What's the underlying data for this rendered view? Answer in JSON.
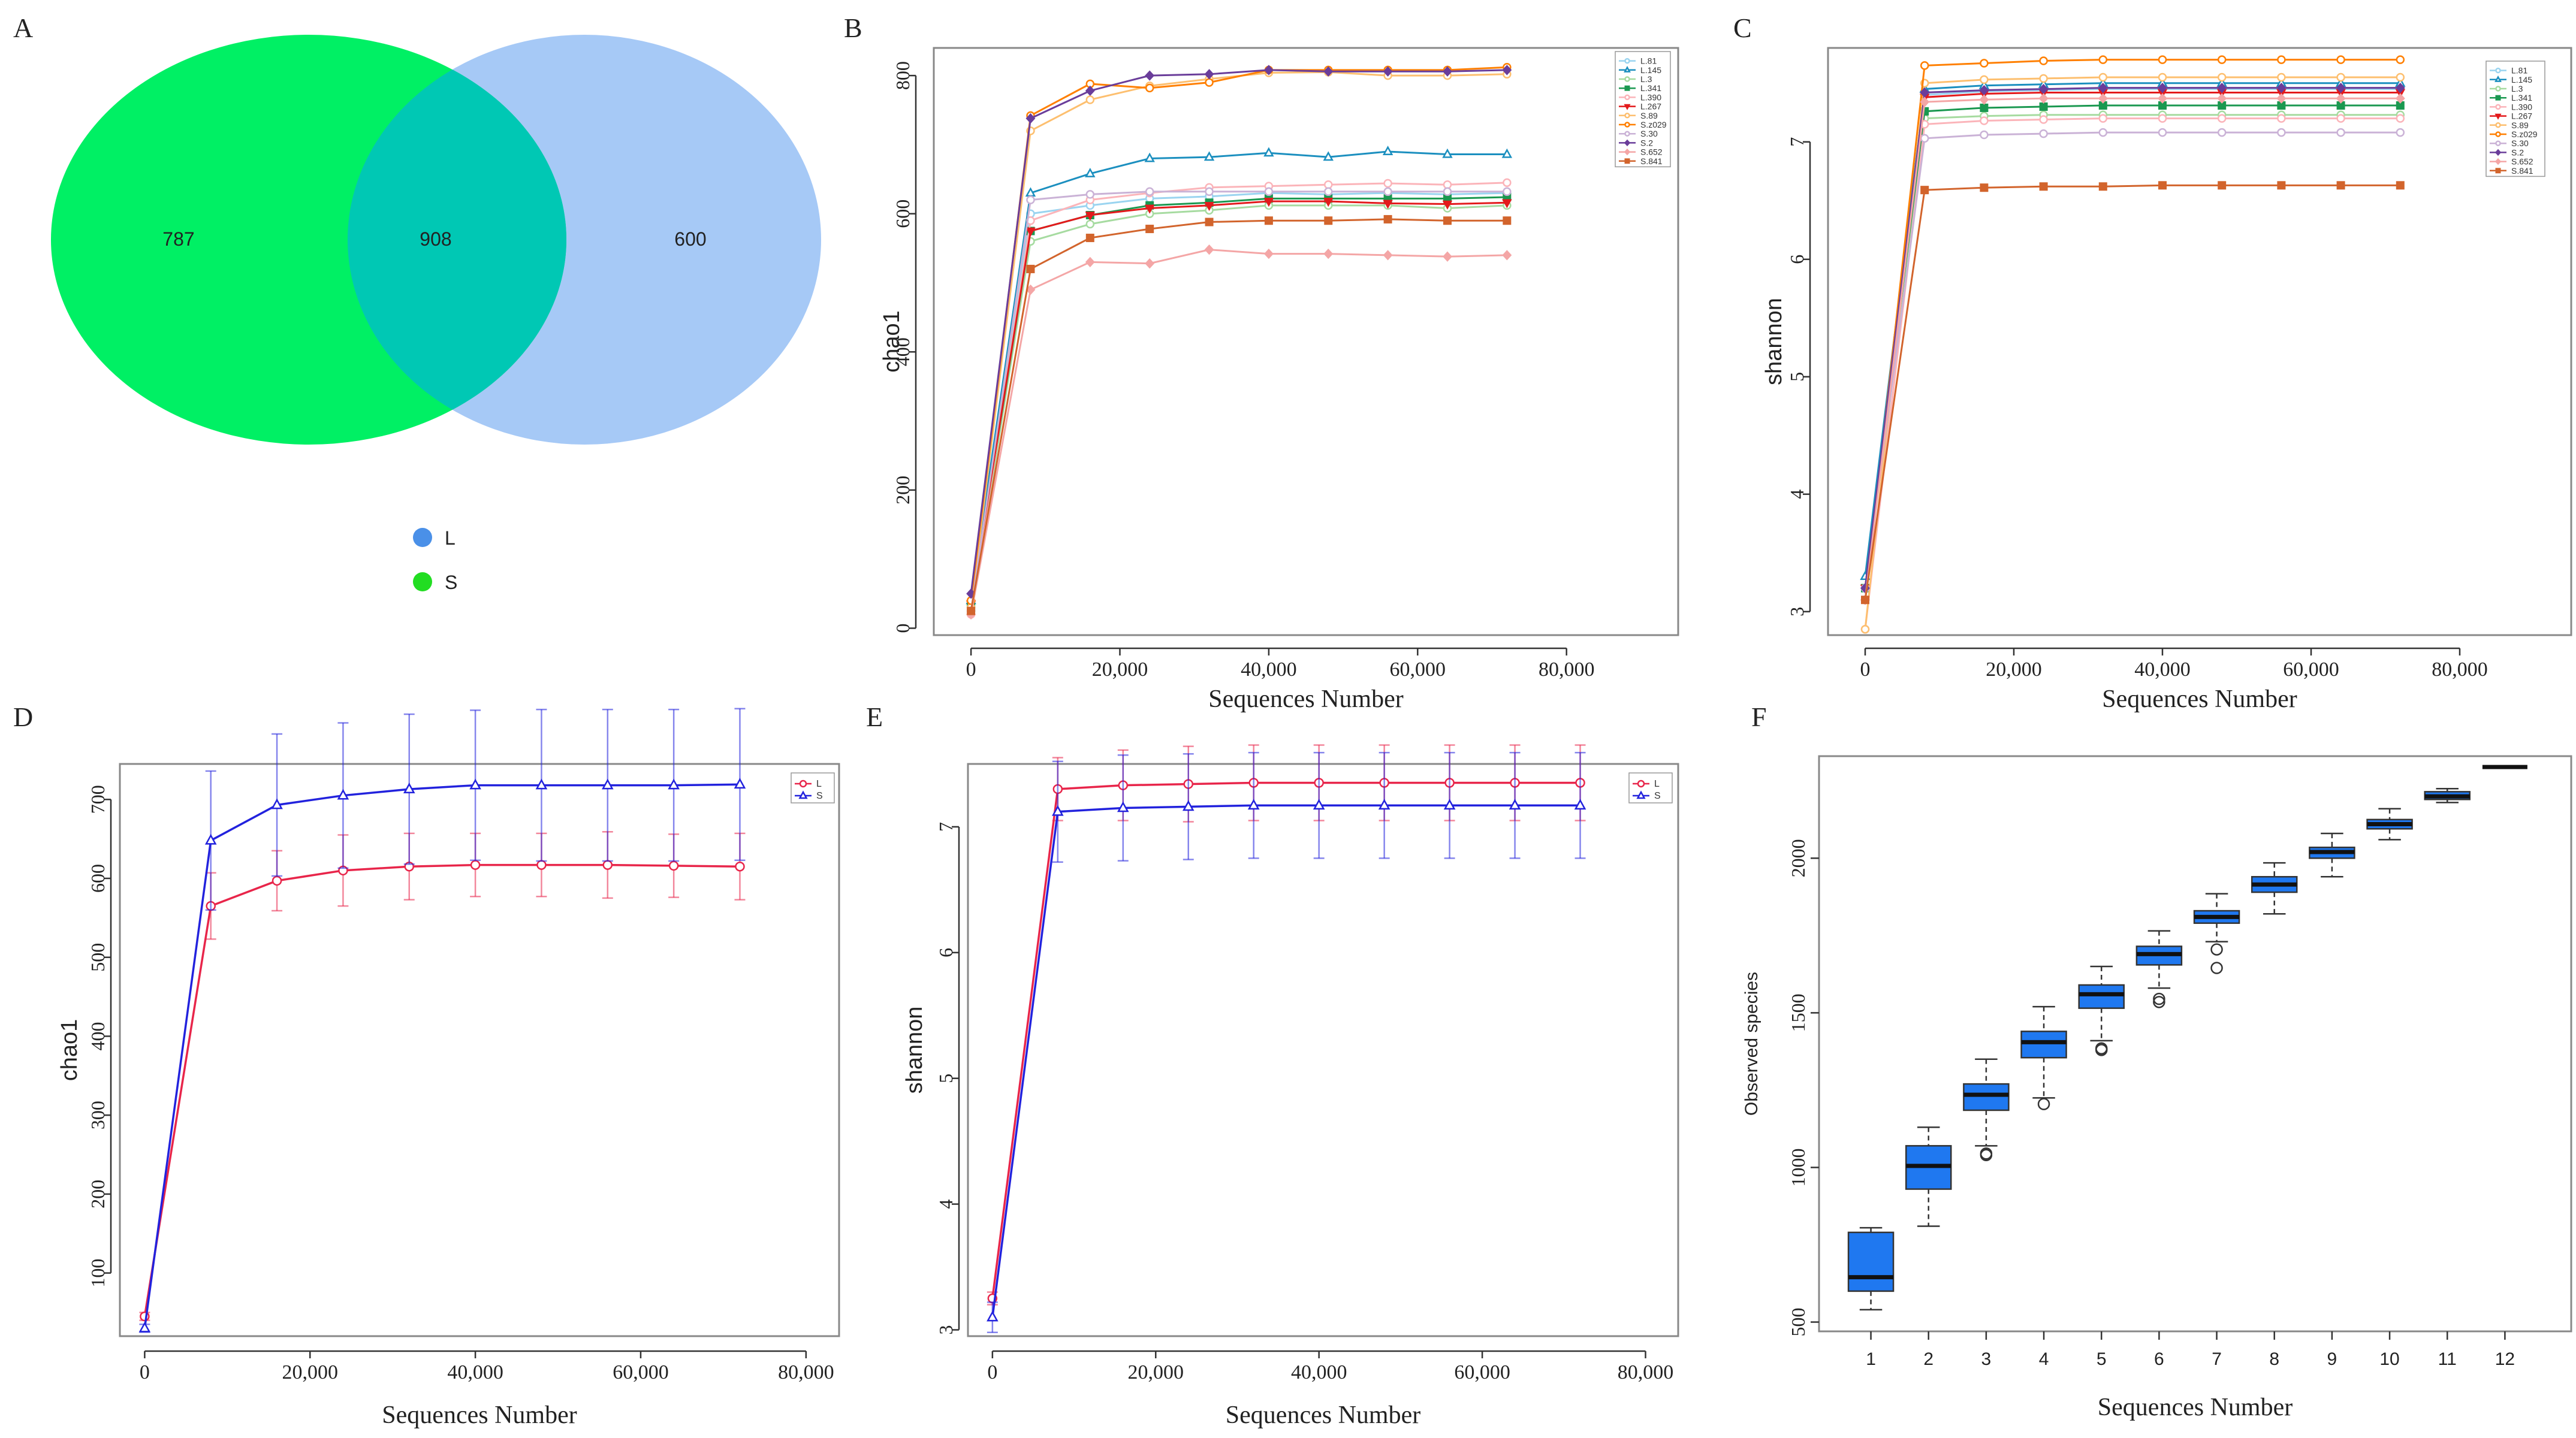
{
  "panels": {
    "A": "A",
    "B": "B",
    "C": "C",
    "D": "D",
    "E": "E",
    "F": "F"
  },
  "chart_data": [
    {
      "id": "A",
      "type": "venn",
      "sets": [
        {
          "name": "S",
          "only": 787,
          "color": "#00f060"
        },
        {
          "name": "L",
          "only": 600,
          "color": "#a0c8f8"
        }
      ],
      "overlap": 908,
      "overlap_color": "#00c8b4",
      "legend": [
        {
          "label": "L",
          "color": "#4a90e8"
        },
        {
          "label": "S",
          "color": "#22dd22"
        }
      ]
    },
    {
      "id": "B",
      "type": "line",
      "xlabel": "Sequences Number",
      "ylabel": "chao1",
      "xlim": [
        -5000,
        95000
      ],
      "ylim": [
        -10,
        840
      ],
      "xticks": [
        0,
        20000,
        40000,
        60000,
        80000
      ],
      "xtick_labels": [
        "0",
        "20,000",
        "40,000",
        "60,000",
        "80,000"
      ],
      "yticks": [
        0,
        200,
        400,
        600,
        800
      ],
      "ytick_labels": [
        "0",
        "200",
        "400",
        "600",
        "800"
      ],
      "x": [
        0,
        8000,
        16000,
        24000,
        32000,
        40000,
        48000,
        56000,
        64000,
        72000
      ],
      "series": [
        {
          "name": "L.81",
          "color": "#9ad4f0",
          "marker": "circle",
          "values": [
            30,
            600,
            612,
            622,
            625,
            630,
            628,
            630,
            628,
            630
          ]
        },
        {
          "name": "L.145",
          "color": "#1b8fbf",
          "marker": "triangle",
          "values": [
            40,
            630,
            658,
            680,
            682,
            688,
            682,
            690,
            686,
            686
          ]
        },
        {
          "name": "L.3",
          "color": "#a6dba0",
          "marker": "circle",
          "values": [
            25,
            560,
            585,
            600,
            605,
            612,
            612,
            612,
            608,
            612
          ]
        },
        {
          "name": "L.341",
          "color": "#1a9850",
          "marker": "square",
          "values": [
            30,
            575,
            598,
            612,
            616,
            622,
            622,
            622,
            622,
            624
          ]
        },
        {
          "name": "L.390",
          "color": "#fbb4b9",
          "marker": "circle",
          "values": [
            20,
            590,
            620,
            630,
            638,
            640,
            642,
            644,
            642,
            645
          ]
        },
        {
          "name": "L.267",
          "color": "#e31a1c",
          "marker": "triangle-down",
          "values": [
            35,
            575,
            598,
            608,
            612,
            618,
            618,
            615,
            614,
            616
          ]
        },
        {
          "name": "S.89",
          "color": "#fdbf6f",
          "marker": "circle",
          "values": [
            30,
            720,
            765,
            785,
            795,
            804,
            805,
            800,
            800,
            802
          ]
        },
        {
          "name": "S.z029",
          "color": "#ff7f00",
          "marker": "circle",
          "values": [
            40,
            742,
            788,
            782,
            790,
            808,
            808,
            808,
            808,
            812
          ]
        },
        {
          "name": "S.30",
          "color": "#cab2d6",
          "marker": "circle",
          "values": [
            25,
            620,
            628,
            632,
            632,
            632,
            632,
            632,
            632,
            632
          ]
        },
        {
          "name": "S.2",
          "color": "#6a3d9a",
          "marker": "diamond",
          "values": [
            50,
            738,
            778,
            800,
            802,
            808,
            806,
            806,
            806,
            808
          ]
        },
        {
          "name": "S.652",
          "color": "#f4a6a6",
          "marker": "diamond",
          "values": [
            20,
            490,
            530,
            528,
            548,
            542,
            542,
            540,
            538,
            540
          ]
        },
        {
          "name": "S.841",
          "color": "#d2642c",
          "marker": "square",
          "values": [
            25,
            520,
            565,
            578,
            588,
            590,
            590,
            592,
            590,
            590
          ]
        }
      ]
    },
    {
      "id": "C",
      "type": "line",
      "xlabel": "Sequences Number",
      "ylabel": "shannon",
      "xlim": [
        -5000,
        95000
      ],
      "ylim": [
        2.8,
        7.8
      ],
      "xticks": [
        0,
        20000,
        40000,
        60000,
        80000
      ],
      "xtick_labels": [
        "0",
        "20,000",
        "40,000",
        "60,000",
        "80,000"
      ],
      "yticks": [
        3,
        4,
        5,
        6,
        7
      ],
      "ytick_labels": [
        "3",
        "4",
        "5",
        "6",
        "7"
      ],
      "x": [
        0,
        8000,
        16000,
        24000,
        32000,
        40000,
        48000,
        56000,
        64000,
        72000
      ],
      "series": [
        {
          "name": "L.81",
          "color": "#9ad4f0",
          "marker": "circle",
          "values": [
            3.2,
            7.4,
            7.43,
            7.44,
            7.45,
            7.45,
            7.45,
            7.45,
            7.45,
            7.45
          ]
        },
        {
          "name": "L.145",
          "color": "#1b8fbf",
          "marker": "triangle",
          "values": [
            3.3,
            7.45,
            7.48,
            7.49,
            7.5,
            7.5,
            7.5,
            7.5,
            7.5,
            7.5
          ]
        },
        {
          "name": "L.3",
          "color": "#a6dba0",
          "marker": "circle",
          "values": [
            3.2,
            7.2,
            7.22,
            7.23,
            7.23,
            7.23,
            7.23,
            7.23,
            7.23,
            7.23
          ]
        },
        {
          "name": "L.341",
          "color": "#1a9850",
          "marker": "square",
          "values": [
            3.2,
            7.26,
            7.29,
            7.3,
            7.31,
            7.31,
            7.31,
            7.31,
            7.31,
            7.31
          ]
        },
        {
          "name": "L.390",
          "color": "#fbb4b9",
          "marker": "circle",
          "values": [
            2.85,
            7.15,
            7.18,
            7.19,
            7.2,
            7.2,
            7.2,
            7.2,
            7.2,
            7.2
          ]
        },
        {
          "name": "L.267",
          "color": "#e31a1c",
          "marker": "triangle-down",
          "values": [
            3.2,
            7.38,
            7.41,
            7.42,
            7.42,
            7.42,
            7.42,
            7.42,
            7.42,
            7.42
          ]
        },
        {
          "name": "S.89",
          "color": "#fdbf6f",
          "marker": "circle",
          "values": [
            2.85,
            7.5,
            7.53,
            7.54,
            7.55,
            7.55,
            7.55,
            7.55,
            7.55,
            7.55
          ]
        },
        {
          "name": "S.z029",
          "color": "#ff7f00",
          "marker": "circle",
          "values": [
            3.1,
            7.65,
            7.67,
            7.69,
            7.7,
            7.7,
            7.7,
            7.7,
            7.7,
            7.7
          ]
        },
        {
          "name": "S.30",
          "color": "#cab2d6",
          "marker": "circle",
          "values": [
            3.2,
            7.03,
            7.06,
            7.07,
            7.08,
            7.08,
            7.08,
            7.08,
            7.08,
            7.08
          ]
        },
        {
          "name": "S.2",
          "color": "#6a3d9a",
          "marker": "diamond",
          "values": [
            3.2,
            7.42,
            7.44,
            7.45,
            7.46,
            7.46,
            7.46,
            7.46,
            7.46,
            7.46
          ]
        },
        {
          "name": "S.652",
          "color": "#f4a6a6",
          "marker": "diamond",
          "values": [
            3.1,
            7.34,
            7.36,
            7.37,
            7.37,
            7.37,
            7.37,
            7.37,
            7.37,
            7.37
          ]
        },
        {
          "name": "S.841",
          "color": "#d2642c",
          "marker": "square",
          "values": [
            3.1,
            6.59,
            6.61,
            6.62,
            6.62,
            6.63,
            6.63,
            6.63,
            6.63,
            6.63
          ]
        }
      ]
    },
    {
      "id": "D",
      "type": "line",
      "xlabel": "Sequences Number",
      "ylabel": "chao1",
      "xlim": [
        -3000,
        84000
      ],
      "ylim": [
        20,
        745
      ],
      "xticks": [
        0,
        20000,
        40000,
        60000,
        80000
      ],
      "xtick_labels": [
        "0",
        "20,000",
        "40,000",
        "60,000",
        "80,000"
      ],
      "yticks": [
        100,
        200,
        300,
        400,
        500,
        600,
        700
      ],
      "ytick_labels": [
        "100",
        "200",
        "300",
        "400",
        "500",
        "600",
        "700"
      ],
      "x": [
        0,
        8000,
        16000,
        24000,
        32000,
        40000,
        48000,
        56000,
        64000,
        72000
      ],
      "series": [
        {
          "name": "L",
          "color": "#e8254a",
          "marker": "circle",
          "values": [
            45,
            565,
            597,
            610,
            615,
            617,
            617,
            617,
            616,
            615
          ],
          "err": [
            5,
            42,
            38,
            45,
            42,
            40,
            40,
            42,
            40,
            42
          ]
        },
        {
          "name": "S",
          "color": "#2222dd",
          "marker": "triangle",
          "values": [
            30,
            648,
            693,
            705,
            713,
            718,
            718,
            718,
            718,
            719
          ],
          "err": [
            5,
            88,
            90,
            92,
            95,
            95,
            96,
            96,
            96,
            96
          ]
        }
      ]
    },
    {
      "id": "E",
      "type": "line",
      "xlabel": "Sequences Number",
      "ylabel": "shannon",
      "xlim": [
        -3000,
        84000
      ],
      "ylim": [
        2.95,
        7.5
      ],
      "xticks": [
        0,
        20000,
        40000,
        60000,
        80000
      ],
      "xtick_labels": [
        "0",
        "20,000",
        "40,000",
        "60,000",
        "80,000"
      ],
      "yticks": [
        3,
        4,
        5,
        6,
        7
      ],
      "ytick_labels": [
        "3",
        "4",
        "5",
        "6",
        "7"
      ],
      "x": [
        0,
        8000,
        16000,
        24000,
        32000,
        40000,
        48000,
        56000,
        64000,
        72000
      ],
      "series": [
        {
          "name": "L",
          "color": "#e8254a",
          "marker": "circle",
          "values": [
            3.25,
            7.3,
            7.33,
            7.34,
            7.35,
            7.35,
            7.35,
            7.35,
            7.35,
            7.35
          ],
          "err": [
            0.05,
            0.25,
            0.28,
            0.3,
            0.3,
            0.3,
            0.3,
            0.3,
            0.3,
            0.3
          ]
        },
        {
          "name": "S",
          "color": "#2222dd",
          "marker": "triangle",
          "values": [
            3.1,
            7.12,
            7.15,
            7.16,
            7.17,
            7.17,
            7.17,
            7.17,
            7.17,
            7.17
          ],
          "err": [
            0.12,
            0.4,
            0.42,
            0.42,
            0.42,
            0.42,
            0.42,
            0.42,
            0.42,
            0.42
          ]
        }
      ]
    },
    {
      "id": "F",
      "type": "box",
      "xlabel": "Sequences Number",
      "ylabel": "Observed species",
      "ylim": [
        470,
        2330
      ],
      "yticks": [
        500,
        1000,
        1500,
        2000
      ],
      "ytick_labels": [
        "500",
        "1000",
        "1500",
        "2000"
      ],
      "categories": [
        "1",
        "2",
        "3",
        "4",
        "5",
        "6",
        "7",
        "8",
        "9",
        "10",
        "11",
        "12"
      ],
      "box_color": "#1f78f0",
      "boxes": [
        {
          "min": 540,
          "q1": 600,
          "median": 645,
          "q3": 790,
          "max": 805,
          "outliers": []
        },
        {
          "min": 810,
          "q1": 930,
          "median": 1005,
          "q3": 1070,
          "max": 1130,
          "outliers": []
        },
        {
          "min": 1070,
          "q1": 1185,
          "median": 1235,
          "q3": 1270,
          "max": 1350,
          "outliers": [
            1045,
            1040
          ]
        },
        {
          "min": 1225,
          "q1": 1355,
          "median": 1405,
          "q3": 1440,
          "max": 1520,
          "outliers": [
            1205
          ]
        },
        {
          "min": 1410,
          "q1": 1515,
          "median": 1560,
          "q3": 1590,
          "max": 1650,
          "outliers": [
            1385,
            1380
          ]
        },
        {
          "min": 1580,
          "q1": 1655,
          "median": 1690,
          "q3": 1715,
          "max": 1765,
          "outliers": [
            1545,
            1535
          ]
        },
        {
          "min": 1730,
          "q1": 1790,
          "median": 1810,
          "q3": 1830,
          "max": 1885,
          "outliers": [
            1705,
            1645
          ]
        },
        {
          "min": 1820,
          "q1": 1890,
          "median": 1915,
          "q3": 1940,
          "max": 1985,
          "outliers": []
        },
        {
          "min": 1940,
          "q1": 2000,
          "median": 2020,
          "q3": 2035,
          "max": 2080,
          "outliers": []
        },
        {
          "min": 2060,
          "q1": 2095,
          "median": 2110,
          "q3": 2125,
          "max": 2160,
          "outliers": []
        },
        {
          "min": 2180,
          "q1": 2190,
          "median": 2200,
          "q3": 2215,
          "max": 2225,
          "outliers": []
        },
        {
          "min": 2295,
          "q1": 2295,
          "median": 2295,
          "q3": 2295,
          "max": 2295,
          "outliers": []
        }
      ]
    }
  ]
}
